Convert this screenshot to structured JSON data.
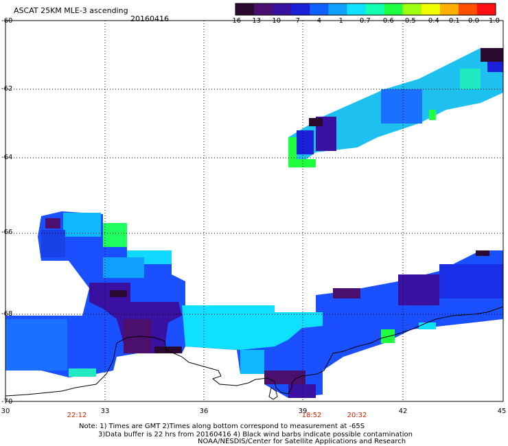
{
  "header": {
    "title": "ASCAT 25KM MLE-3 ascending",
    "date": "20160416"
  },
  "colorbar": {
    "ticks": [
      "-16",
      "-13",
      "-10",
      "-7",
      "-4",
      "-1",
      "-0.7",
      "-0.6",
      "-0.5",
      "-0.4",
      "-0.1",
      "0.0",
      "1.0"
    ],
    "colors": [
      "#2a0a2e",
      "#4b0f6e",
      "#3a10a0",
      "#1a20d8",
      "#1060ff",
      "#10a0ff",
      "#10e0ff",
      "#10ffb0",
      "#20ff40",
      "#a0ff10",
      "#f0ff00",
      "#ffb000",
      "#ff5000",
      "#ff1010"
    ]
  },
  "map": {
    "lat_ticks": [
      "-60",
      "-62",
      "-64",
      "-66",
      "-68",
      "-70"
    ],
    "lon_ticks": [
      "30",
      "33",
      "36",
      "39",
      "42",
      "45"
    ],
    "time_labels": [
      "22:12",
      "18:52",
      "20:32"
    ],
    "grid": true
  },
  "notes": {
    "line1": "Note: 1) Times are GMT 2)Times along bottom correspond to measurement at -65S",
    "line2": "3)Data buffer is 22 hrs from 20160416 4) Black wind barbs indicate possible contamination",
    "line3": "NOAA/NESDIS/Center for Satellite Applications and Research"
  }
}
